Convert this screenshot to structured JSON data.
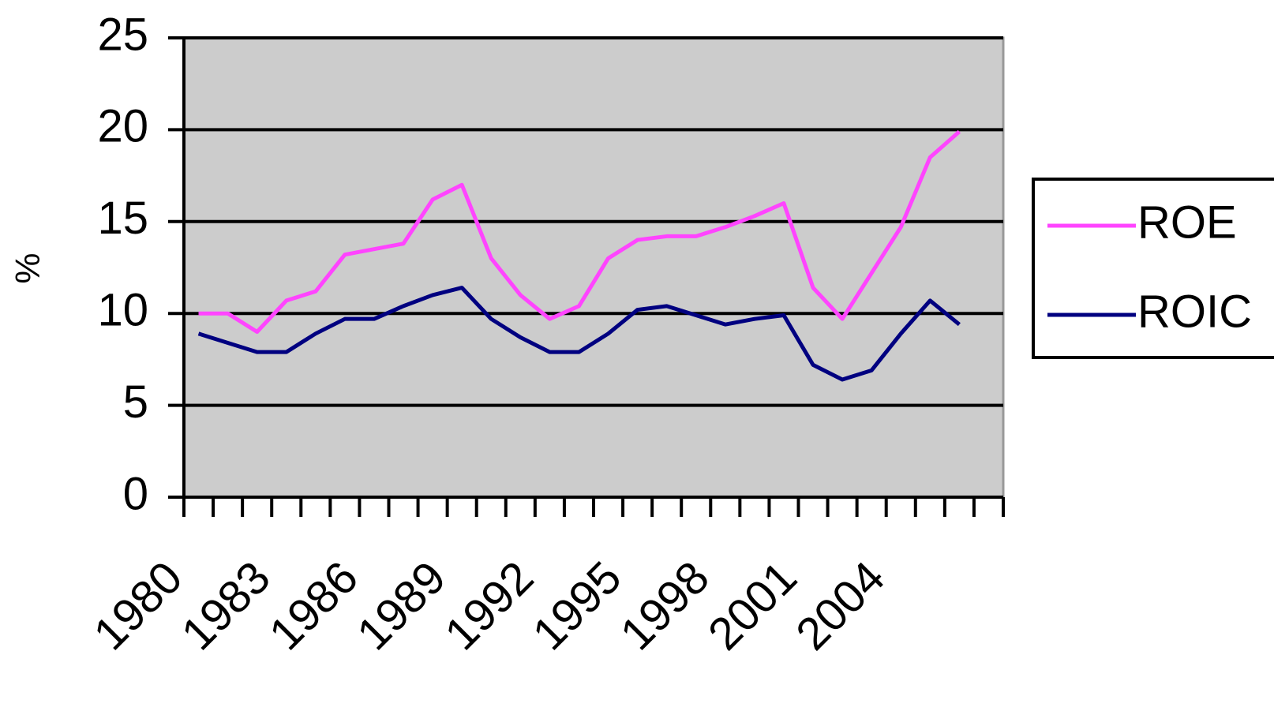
{
  "chart_data": {
    "type": "line",
    "y_label": "%",
    "categories": [
      "1980",
      null,
      null,
      "1983",
      null,
      null,
      "1986",
      null,
      null,
      "1989",
      null,
      null,
      "1992",
      null,
      null,
      "1995",
      null,
      null,
      "1998",
      null,
      null,
      "2001",
      null,
      null,
      "2004",
      null,
      null,
      null
    ],
    "series": [
      {
        "name": "ROE",
        "color": "#ff44ff",
        "values": [
          10,
          10,
          9,
          10.7,
          11.2,
          13.2,
          13.5,
          13.8,
          16.2,
          17.0,
          13.0,
          11.0,
          9.7,
          10.4,
          13.0,
          14.0,
          14.2,
          14.2,
          14.7,
          15.3,
          16.0,
          11.4,
          9.7,
          12.2,
          14.7,
          18.5,
          19.9,
          null
        ]
      },
      {
        "name": "ROIC",
        "color": "#000080",
        "values": [
          8.9,
          8.4,
          7.9,
          7.9,
          8.9,
          9.7,
          9.7,
          10.4,
          11.0,
          11.4,
          9.7,
          8.7,
          7.9,
          7.9,
          8.9,
          10.2,
          10.4,
          9.9,
          9.4,
          9.7,
          9.9,
          7.2,
          6.4,
          6.9,
          8.9,
          10.7,
          9.4,
          null
        ]
      }
    ],
    "ylim": [
      0,
      25
    ],
    "yticks": [
      0,
      5,
      10,
      15,
      20,
      25
    ],
    "grid": true,
    "plot_background": "#cccccc",
    "legend": "right"
  }
}
